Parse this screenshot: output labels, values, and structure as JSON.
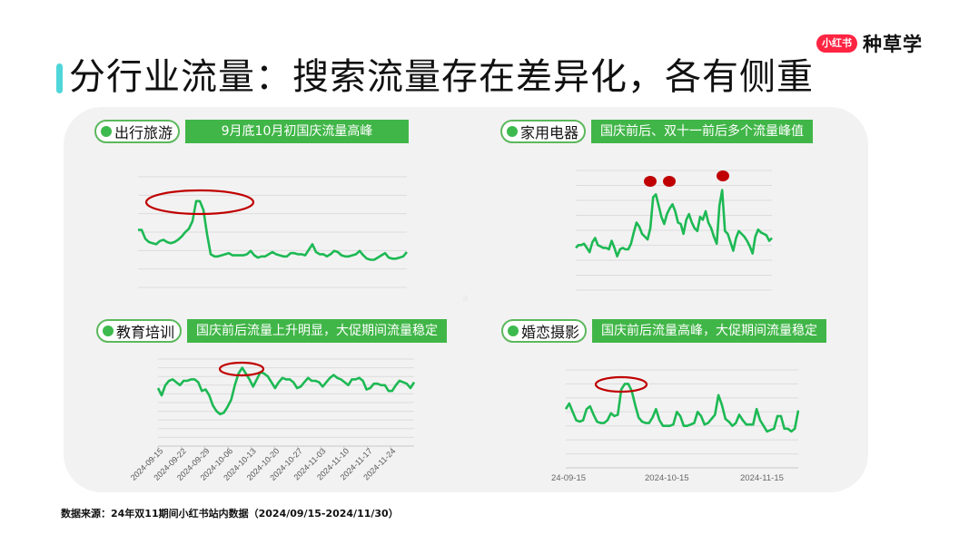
{
  "brand": {
    "badge": "小红书",
    "text": "种草学"
  },
  "page_title": "分行业流量：搜索流量存在差异化，各有侧重",
  "footnote": "数据来源：24年双11期间小红书站内数据（2024/09/15-2024/11/30）",
  "stray_mark": "a",
  "colors": {
    "line": "#1db954",
    "highlight": "#c00000",
    "tag_green": "#41b648",
    "accent_bar": "#4fd6d9",
    "brand_red": "#ff2442"
  },
  "panels": [
    {
      "industry": "出行旅游",
      "note": "9月底10月初国庆流量高峰"
    },
    {
      "industry": "家用电器",
      "note": "国庆前后、双十一前后多个流量峰值"
    },
    {
      "industry": "教育培训",
      "note": "国庆前后流量上升明显，大促期间流量稳定"
    },
    {
      "industry": "婚恋摄影",
      "note": "国庆前后流量高峰，大促期间流量稳定"
    }
  ],
  "chart_data": [
    {
      "type": "line",
      "title": "出行旅游",
      "annotation": "9月底10月初国庆流量高峰",
      "x_range": [
        "2024-09-15",
        "2024-11-30"
      ],
      "grid": true,
      "values": [
        52,
        52,
        44,
        41,
        40,
        39,
        42,
        43,
        41,
        40,
        41,
        43,
        46,
        50,
        53,
        60,
        78,
        78,
        70,
        48,
        30,
        28,
        28,
        29,
        30,
        31,
        29,
        29,
        29,
        29,
        30,
        33,
        29,
        27,
        28,
        28,
        30,
        32,
        30,
        29,
        28,
        28,
        31,
        31,
        30,
        30,
        29,
        34,
        39,
        32,
        30,
        30,
        28,
        30,
        33,
        32,
        29,
        28,
        28,
        29,
        30,
        33,
        29,
        26,
        25,
        25,
        27,
        29,
        31,
        27,
        26,
        26,
        27,
        28,
        32
      ]
    },
    {
      "type": "line",
      "title": "家用电器",
      "annotation": "国庆前后、双十一前后多个流量峰值",
      "highlight_points": [
        "early Oct peak",
        "mid Oct peak",
        "early Nov peak"
      ],
      "x_range": [
        "2024-09-15",
        "2024-11-30"
      ],
      "grid": true,
      "values": [
        40,
        42,
        42,
        43,
        40,
        37,
        44,
        47,
        42,
        41,
        40,
        40,
        39,
        45,
        40,
        34,
        39,
        40,
        39,
        39,
        43,
        51,
        58,
        55,
        50,
        48,
        46,
        54,
        76,
        78,
        70,
        62,
        57,
        64,
        68,
        71,
        66,
        58,
        57,
        50,
        60,
        64,
        58,
        54,
        52,
        62,
        60,
        66,
        58,
        54,
        48,
        43,
        70,
        81,
        52,
        50,
        44,
        38,
        47,
        52,
        50,
        48,
        45,
        41,
        36,
        48,
        53,
        51,
        50,
        49,
        45,
        47
      ]
    },
    {
      "type": "line",
      "title": "教育培训",
      "annotation": "国庆前后流量上升明显，大促期间流量稳定",
      "x_labels": [
        "2024-09-15",
        "2024-09-22",
        "2024-09-29",
        "2024-10-06",
        "2024-10-13",
        "2024-10-20",
        "2024-10-27",
        "2024-11-03",
        "2024-11-10",
        "2024-11-17",
        "2024-11-24"
      ],
      "grid": true,
      "values": [
        60,
        55,
        62,
        65,
        66,
        64,
        62,
        65,
        65,
        66,
        66,
        64,
        58,
        59,
        55,
        48,
        44,
        42,
        43,
        47,
        52,
        62,
        70,
        74,
        70,
        66,
        61,
        66,
        71,
        70,
        68,
        64,
        60,
        64,
        67,
        66,
        66,
        64,
        60,
        61,
        64,
        67,
        65,
        65,
        64,
        61,
        64,
        67,
        69,
        67,
        66,
        64,
        62,
        66,
        66,
        67,
        65,
        59,
        60,
        63,
        63,
        62,
        62,
        58,
        58,
        62,
        65,
        64,
        63,
        60,
        64
      ]
    },
    {
      "type": "line",
      "title": "婚恋摄影",
      "annotation": "国庆前后流量高峰，大促期间流量稳定",
      "x_labels": [
        "24-09-15",
        "2024-10-15",
        "2024-11-15"
      ],
      "grid": true,
      "values": [
        52,
        56,
        50,
        44,
        43,
        44,
        52,
        54,
        48,
        43,
        42,
        42,
        44,
        49,
        47,
        48,
        66,
        70,
        70,
        65,
        55,
        46,
        43,
        42,
        42,
        46,
        52,
        44,
        40,
        40,
        40,
        41,
        50,
        47,
        40,
        40,
        41,
        42,
        50,
        47,
        41,
        42,
        45,
        48,
        62,
        55,
        45,
        43,
        40,
        42,
        48,
        44,
        41,
        41,
        41,
        52,
        44,
        40,
        36,
        37,
        38,
        47,
        47,
        38,
        38,
        36,
        38,
        51
      ]
    }
  ]
}
